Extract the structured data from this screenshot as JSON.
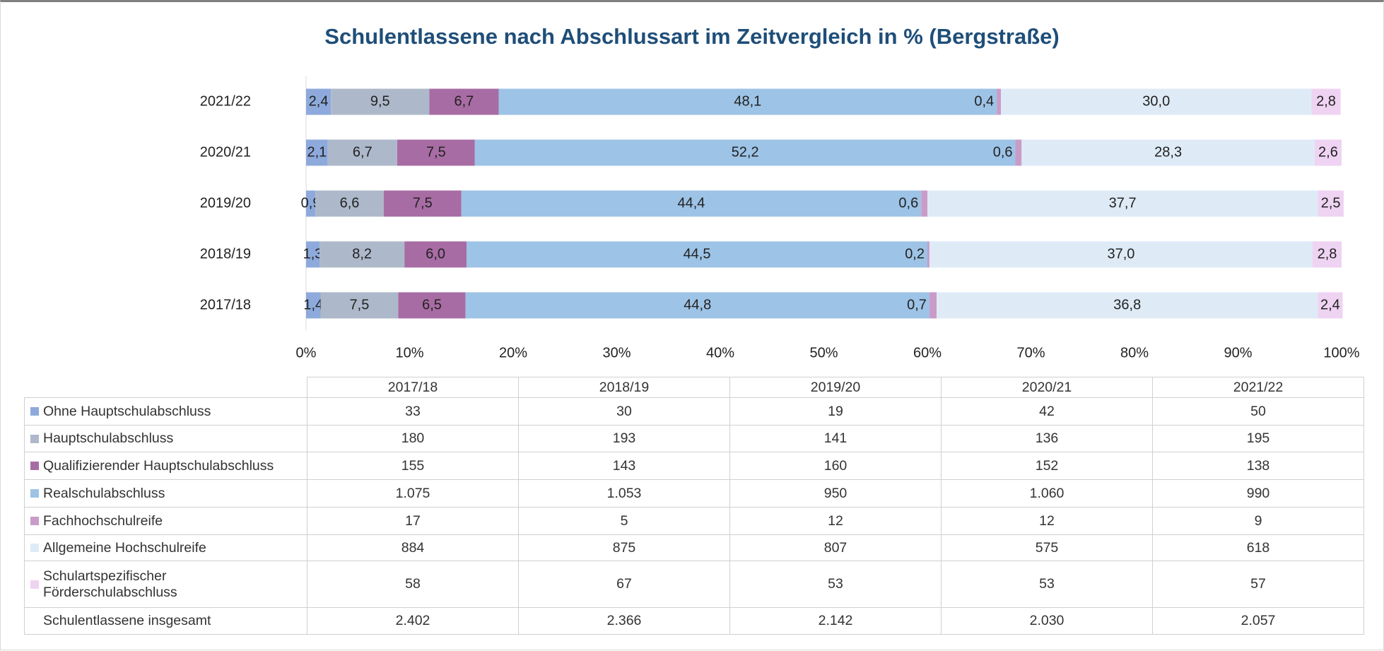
{
  "chart_data": {
    "type": "stacked_bar_horizontal_percent",
    "title": "Schulentlassene nach Abschlussart im Zeitvergleich in % (Bergstraße)",
    "categories": [
      "2017/18",
      "2018/19",
      "2019/20",
      "2020/21",
      "2021/22"
    ],
    "xlim": [
      0,
      100
    ],
    "xticks": [
      {
        "value": 0,
        "label": "0%"
      },
      {
        "value": 10,
        "label": "10%"
      },
      {
        "value": 20,
        "label": "20%"
      },
      {
        "value": 30,
        "label": "30%"
      },
      {
        "value": 40,
        "label": "40%"
      },
      {
        "value": 50,
        "label": "50%"
      },
      {
        "value": 60,
        "label": "60%"
      },
      {
        "value": 70,
        "label": "70%"
      },
      {
        "value": 80,
        "label": "80%"
      },
      {
        "value": 90,
        "label": "90%"
      },
      {
        "value": 100,
        "label": "100%"
      }
    ],
    "series": [
      {
        "name": "Ohne Hauptschulabschluss",
        "color": "#8eaadc",
        "values": [
          1.4,
          1.3,
          0.9,
          2.1,
          2.4
        ],
        "value_labels": [
          "1,4",
          "1,3",
          "0,9",
          "2,1",
          "2,4"
        ],
        "counts": [
          "33",
          "30",
          "19",
          "42",
          "50"
        ]
      },
      {
        "name": "Hauptschulabschluss",
        "color": "#adb9ca",
        "values": [
          7.5,
          8.2,
          6.6,
          6.7,
          9.5
        ],
        "value_labels": [
          "7,5",
          "8,2",
          "6,6",
          "6,7",
          "9,5"
        ],
        "counts": [
          "180",
          "193",
          "141",
          "136",
          "195"
        ]
      },
      {
        "name": "Qualifizierender Hauptschulabschluss",
        "color": "#a86ca4",
        "values": [
          6.5,
          6.0,
          7.5,
          7.5,
          6.7
        ],
        "value_labels": [
          "6,5",
          "6,0",
          "7,5",
          "7,5",
          "6,7"
        ],
        "counts": [
          "155",
          "143",
          "160",
          "152",
          "138"
        ]
      },
      {
        "name": "Realschulabschluss",
        "color": "#9dc3e6",
        "values": [
          44.8,
          44.5,
          44.4,
          52.2,
          48.1
        ],
        "value_labels": [
          "44,8",
          "44,5",
          "44,4",
          "52,2",
          "48,1"
        ],
        "counts": [
          "1.075",
          "1.053",
          "950",
          "1.060",
          "990"
        ]
      },
      {
        "name": "Fachhochschulreife",
        "color": "#c99cc8",
        "values": [
          0.7,
          0.2,
          0.6,
          0.6,
          0.4
        ],
        "value_labels": [
          "0,7",
          "0,2",
          "0,6",
          "0,6",
          "0,4"
        ],
        "counts": [
          "17",
          "5",
          "12",
          "12",
          "9"
        ]
      },
      {
        "name": "Allgemeine Hochschulreife",
        "color": "#deebf7",
        "values": [
          36.8,
          37.0,
          37.7,
          28.3,
          30.0
        ],
        "value_labels": [
          "36,8",
          "37,0",
          "37,7",
          "28,3",
          "30,0"
        ],
        "counts": [
          "884",
          "875",
          "807",
          "575",
          "618"
        ]
      },
      {
        "name": "Schulartspezifischer Förderschulabschluss",
        "color": "#efd3f2",
        "values": [
          2.4,
          2.8,
          2.5,
          2.6,
          2.8
        ],
        "value_labels": [
          "2,4",
          "2,8",
          "2,5",
          "2,6",
          "2,8"
        ],
        "counts": [
          "58",
          "67",
          "53",
          "53",
          "57"
        ]
      }
    ],
    "total": {
      "name": "Schulentlassene insgesamt",
      "counts": [
        "2.402",
        "2.366",
        "2.142",
        "2.030",
        "2.057"
      ]
    }
  }
}
